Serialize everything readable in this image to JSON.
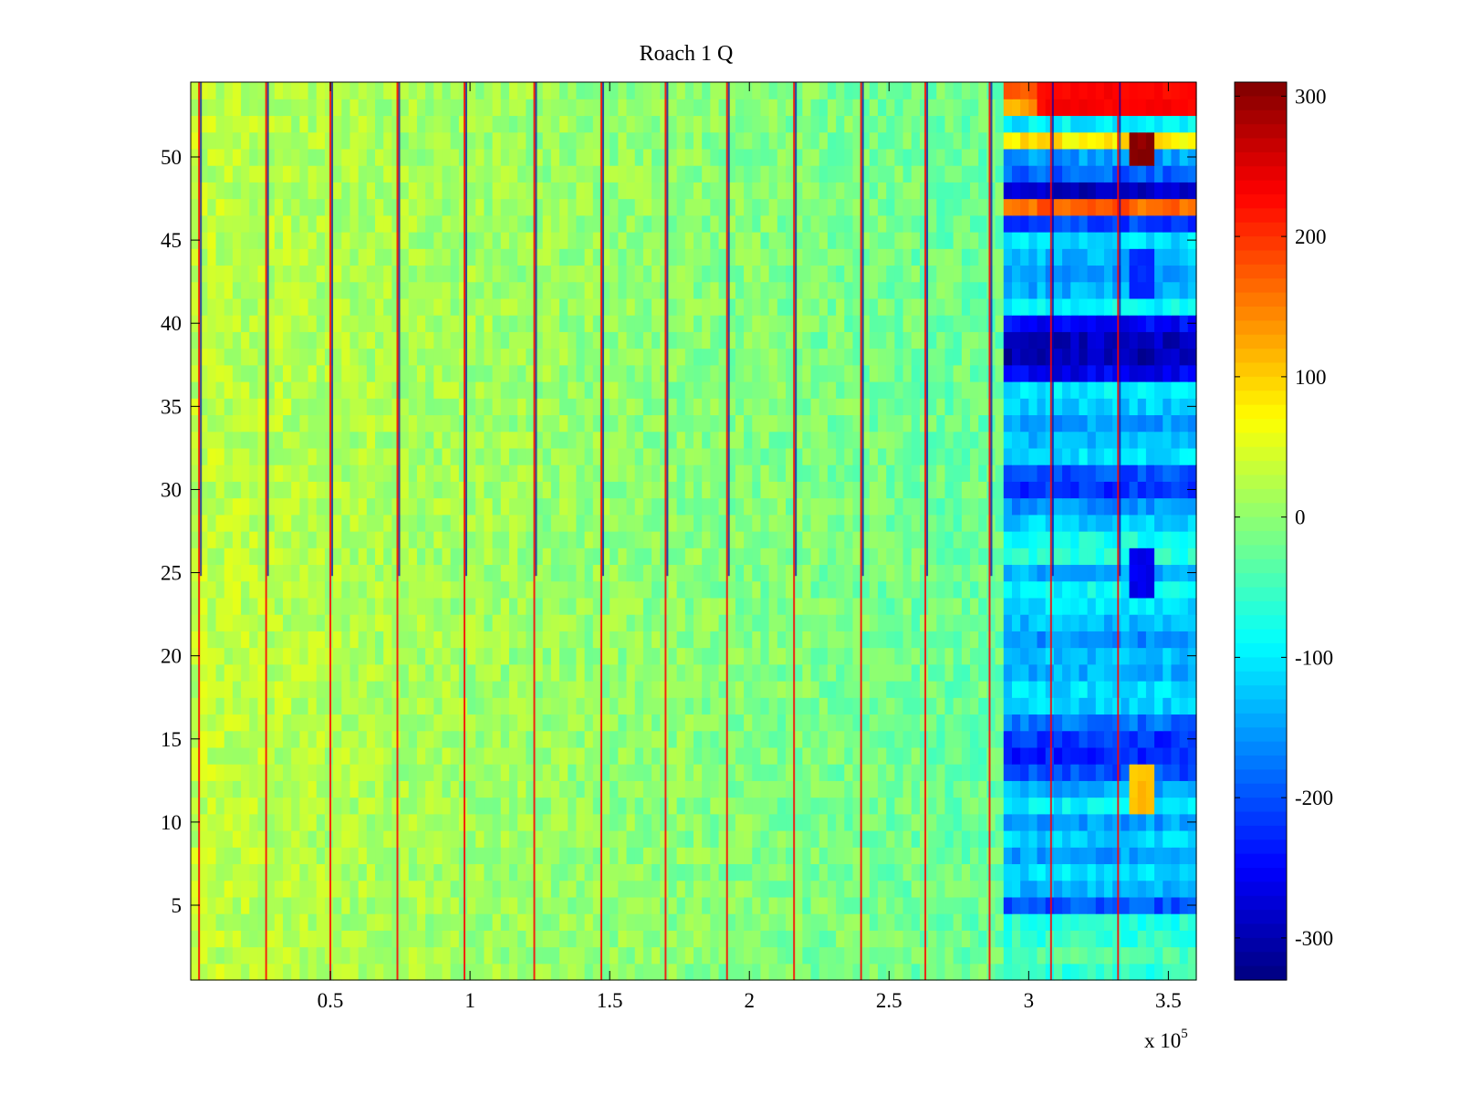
{
  "chart_data": {
    "type": "heatmap",
    "title": "Roach 1 Q",
    "xlabel": "",
    "ylabel": "",
    "x_multiplier_label": {
      "base": "x 10",
      "exponent": "5"
    },
    "xlim": [
      0,
      3.6
    ],
    "ylim": [
      0.5,
      54.5
    ],
    "x_ticks": [
      0.5,
      1,
      1.5,
      2,
      2.5,
      3,
      3.5
    ],
    "x_tick_labels": [
      "0.5",
      "1",
      "1.5",
      "2",
      "2.5",
      "3",
      "3.5"
    ],
    "y_ticks": [
      5,
      10,
      15,
      20,
      25,
      30,
      35,
      40,
      45,
      50
    ],
    "y_tick_labels": [
      "5",
      "10",
      "15",
      "20",
      "25",
      "30",
      "35",
      "40",
      "45",
      "50"
    ],
    "rows": 54,
    "colormap": "jet",
    "color_limits": [
      -330,
      310
    ],
    "colorbar_ticks": [
      300,
      200,
      100,
      0,
      -100,
      -200,
      -300
    ],
    "colorbar_tick_labels": [
      "300",
      "200",
      "100",
      "0",
      "-100",
      "-200",
      "-300"
    ],
    "region_boundary_x": 2.92,
    "vertical_stripes_x": [
      0.03,
      0.27,
      0.5,
      0.74,
      0.98,
      1.23,
      1.47,
      1.7,
      1.92,
      2.16,
      2.4,
      2.63,
      2.86,
      3.08,
      3.32
    ],
    "baseline_level_left": 30,
    "baseline_level_right": -120,
    "row_levels_right": [
      {
        "row": 1,
        "value": -60
      },
      {
        "row": 2,
        "value": -40
      },
      {
        "row": 3,
        "value": -60
      },
      {
        "row": 4,
        "value": -70
      },
      {
        "row": 5,
        "value": -200
      },
      {
        "row": 6,
        "value": -130
      },
      {
        "row": 7,
        "value": -110
      },
      {
        "row": 8,
        "value": -150
      },
      {
        "row": 9,
        "value": -120
      },
      {
        "row": 10,
        "value": -150
      },
      {
        "row": 11,
        "value": -100
      },
      {
        "row": 12,
        "value": -140
      },
      {
        "row": 13,
        "value": -200
      },
      {
        "row": 14,
        "value": -230
      },
      {
        "row": 15,
        "value": -220
      },
      {
        "row": 16,
        "value": -180
      },
      {
        "row": 17,
        "value": -120
      },
      {
        "row": 18,
        "value": -110
      },
      {
        "row": 19,
        "value": -140
      },
      {
        "row": 20,
        "value": -130
      },
      {
        "row": 21,
        "value": -160
      },
      {
        "row": 22,
        "value": -130
      },
      {
        "row": 23,
        "value": -110
      },
      {
        "row": 24,
        "value": -90
      },
      {
        "row": 25,
        "value": -140
      },
      {
        "row": 26,
        "value": -70
      },
      {
        "row": 27,
        "value": -80
      },
      {
        "row": 28,
        "value": -120
      },
      {
        "row": 29,
        "value": -160
      },
      {
        "row": 30,
        "value": -220
      },
      {
        "row": 31,
        "value": -200
      },
      {
        "row": 32,
        "value": -110
      },
      {
        "row": 33,
        "value": -130
      },
      {
        "row": 34,
        "value": -150
      },
      {
        "row": 35,
        "value": -120
      },
      {
        "row": 36,
        "value": -100
      },
      {
        "row": 37,
        "value": -260
      },
      {
        "row": 38,
        "value": -300
      },
      {
        "row": 39,
        "value": -290
      },
      {
        "row": 40,
        "value": -250
      },
      {
        "row": 41,
        "value": -90
      },
      {
        "row": 42,
        "value": -140
      },
      {
        "row": 43,
        "value": -150
      },
      {
        "row": 44,
        "value": -130
      },
      {
        "row": 45,
        "value": -110
      },
      {
        "row": 46,
        "value": -210
      },
      {
        "row": 47,
        "value": 170
      },
      {
        "row": 48,
        "value": -290
      },
      {
        "row": 49,
        "value": -190
      },
      {
        "row": 50,
        "value": -150
      },
      {
        "row": 51,
        "value": 80
      },
      {
        "row": 52,
        "value": -100
      },
      {
        "row": 53,
        "value": 130
      },
      {
        "row": 54,
        "value": 190
      }
    ],
    "hotspots": [
      {
        "x0": 3.35,
        "x1": 3.45,
        "row0": 50,
        "row1": 51,
        "value": 300
      },
      {
        "x0": 3.02,
        "x1": 3.6,
        "row0": 53,
        "row1": 54,
        "value": 230
      },
      {
        "x0": 3.35,
        "x1": 3.45,
        "row0": 11,
        "row1": 13,
        "value": 110
      },
      {
        "x0": 3.35,
        "x1": 3.45,
        "row0": 24,
        "row1": 26,
        "value": -260
      },
      {
        "x0": 3.35,
        "x1": 3.45,
        "row0": 42,
        "row1": 44,
        "value": -220
      }
    ]
  }
}
